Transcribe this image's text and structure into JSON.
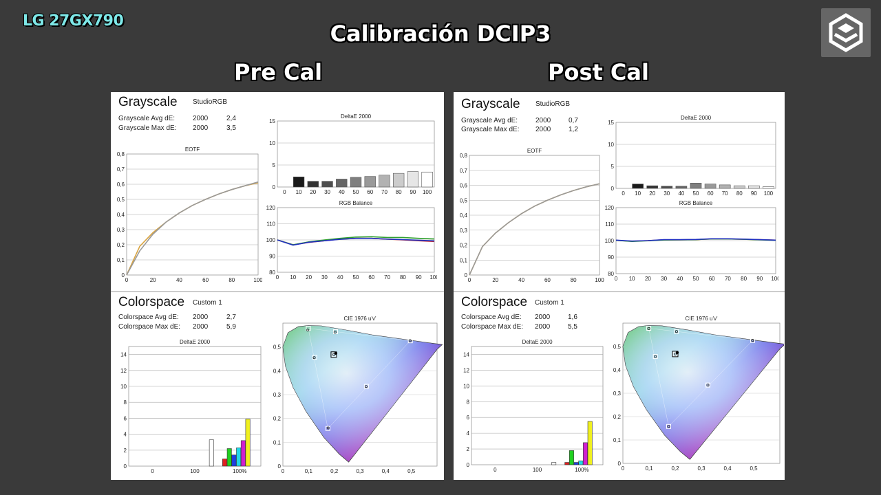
{
  "brand": "LG 27GX790",
  "title": "Calibración DCIP3",
  "panels": [
    {
      "heading": "Pre Cal",
      "grayscale": {
        "title": "Grayscale",
        "profile": "StudioRGB",
        "avg_label": "Grayscale Avg dE:",
        "avg_year": "2000",
        "avg_value": "2,4",
        "max_label": "Grayscale Max dE:",
        "max_year": "2000",
        "max_value": "3,5"
      },
      "colorspace": {
        "title": "Colorspace",
        "profile": "Custom 1",
        "avg_label": "Colorspace Avg dE:",
        "avg_year": "2000",
        "avg_value": "2,7",
        "max_label": "Colorspace Max dE:",
        "max_year": "2000",
        "max_value": "5,9"
      }
    },
    {
      "heading": "Post Cal",
      "grayscale": {
        "title": "Grayscale",
        "profile": "StudioRGB",
        "avg_label": "Grayscale Avg dE:",
        "avg_year": "2000",
        "avg_value": "0,7",
        "max_label": "Grayscale Max dE:",
        "max_year": "2000",
        "max_value": "1,2"
      },
      "colorspace": {
        "title": "Colorspace",
        "profile": "Custom 1",
        "avg_label": "Colorspace Avg dE:",
        "avg_year": "2000",
        "avg_value": "1,6",
        "max_label": "Colorspace Max dE:",
        "max_year": "2000",
        "max_value": "5,5"
      }
    }
  ],
  "chart_data": [
    {
      "id": "pre-eotf",
      "type": "line",
      "title": "EOTF",
      "xlim": [
        0,
        100
      ],
      "ylim": [
        0,
        0.8
      ],
      "xticks": [
        "0",
        "20",
        "40",
        "60",
        "80",
        "100"
      ],
      "yticks": [
        "0",
        "0,1",
        "0,2",
        "0,3",
        "0,4",
        "0,5",
        "0,6",
        "0,7",
        "0,8"
      ],
      "series": [
        {
          "color": "#d9a441",
          "x": [
            0,
            10,
            20,
            30,
            40,
            50,
            60,
            70,
            80,
            90,
            100
          ],
          "y": [
            0,
            0.19,
            0.28,
            0.35,
            0.41,
            0.46,
            0.5,
            0.535,
            0.565,
            0.59,
            0.61
          ]
        },
        {
          "color": "#9a9a9a",
          "x": [
            0,
            10,
            20,
            30,
            40,
            50,
            60,
            70,
            80,
            90,
            100
          ],
          "y": [
            0,
            0.16,
            0.27,
            0.35,
            0.41,
            0.46,
            0.5,
            0.535,
            0.565,
            0.59,
            0.615
          ]
        }
      ]
    },
    {
      "id": "pre-gs-de",
      "type": "bar",
      "title": "DeltaE 2000",
      "ylim": [
        0,
        15
      ],
      "yticks": [
        "0",
        "5",
        "10",
        "15"
      ],
      "categories": [
        "0",
        "10",
        "20",
        "30",
        "40",
        "50",
        "60",
        "70",
        "80",
        "90",
        "100"
      ],
      "values": [
        0,
        2.3,
        1.3,
        1.3,
        1.8,
        2.2,
        2.4,
        2.7,
        3.1,
        3.5,
        3.4
      ],
      "bar_colors": [
        "#000000",
        "#1a1a1a",
        "#333333",
        "#4d4d4d",
        "#666666",
        "#7f7f7f",
        "#999999",
        "#b2b2b2",
        "#cccccc",
        "#e6e6e6",
        "#ffffff"
      ]
    },
    {
      "id": "pre-rgb",
      "type": "line",
      "title": "RGB Balance",
      "xlim": [
        0,
        100
      ],
      "ylim": [
        80,
        120
      ],
      "xticks": [
        "0",
        "10",
        "20",
        "30",
        "40",
        "50",
        "60",
        "70",
        "80",
        "90",
        "100"
      ],
      "yticks": [
        "80",
        "90",
        "100",
        "110",
        "120"
      ],
      "series": [
        {
          "color": "#d03030",
          "x": [
            0,
            10,
            20,
            30,
            40,
            50,
            60,
            70,
            80,
            90,
            100
          ],
          "y": [
            100,
            97,
            98.5,
            99.5,
            100.5,
            101,
            101,
            100.5,
            100,
            99.5,
            99
          ]
        },
        {
          "color": "#30a030",
          "x": [
            0,
            10,
            20,
            30,
            40,
            50,
            60,
            70,
            80,
            90,
            100
          ],
          "y": [
            100,
            97,
            98.8,
            100,
            101,
            101.8,
            102,
            101.5,
            101.5,
            101,
            100.6
          ]
        },
        {
          "color": "#2030c0",
          "x": [
            0,
            10,
            20,
            30,
            40,
            50,
            60,
            70,
            80,
            90,
            100
          ],
          "y": [
            100,
            96.8,
            98.6,
            99.5,
            100.4,
            101,
            101,
            100.5,
            100.2,
            99.8,
            99.4
          ]
        }
      ]
    },
    {
      "id": "pre-cs-de",
      "type": "bar",
      "title": "DeltaE 2000",
      "ylim": [
        0,
        15
      ],
      "yticks": [
        "0",
        "2",
        "4",
        "6",
        "8",
        "10",
        "12",
        "14"
      ],
      "xticks": [
        "0",
        "100",
        "100%"
      ],
      "bars": [
        {
          "label": "white",
          "value": 3.3,
          "color": "#ffffff"
        },
        {
          "label": "red",
          "value": 0.9,
          "color": "#e02020"
        },
        {
          "label": "green",
          "value": 2.2,
          "color": "#20d020"
        },
        {
          "label": "blue",
          "value": 1.4,
          "color": "#2040e0"
        },
        {
          "label": "cyan",
          "value": 2.3,
          "color": "#20d8e8"
        },
        {
          "label": "magenta",
          "value": 3.2,
          "color": "#d020d0"
        },
        {
          "label": "yellow",
          "value": 5.9,
          "color": "#f0f020"
        }
      ]
    },
    {
      "id": "pre-cie",
      "type": "scatter",
      "title": "CIE 1976 u'v'",
      "xlim": [
        0,
        0.6
      ],
      "ylim": [
        0,
        0.6
      ],
      "xticks": [
        "0",
        "0,1",
        "0,2",
        "0,3",
        "0,4",
        "0,5"
      ],
      "yticks": [
        "0",
        "0,1",
        "0,2",
        "0,3",
        "0,4",
        "0,5"
      ],
      "targets": [
        [
          0.496,
          0.526
        ],
        [
          0.099,
          0.578
        ],
        [
          0.175,
          0.158
        ],
        [
          0.325,
          0.335
        ],
        [
          0.124,
          0.457
        ],
        [
          0.2,
          0.467
        ],
        [
          0.205,
          0.564
        ]
      ],
      "measured": [
        [
          0.495,
          0.526
        ],
        [
          0.097,
          0.571
        ],
        [
          0.176,
          0.16
        ],
        [
          0.324,
          0.334
        ],
        [
          0.122,
          0.455
        ],
        [
          0.198,
          0.468
        ],
        [
          0.203,
          0.562
        ]
      ],
      "white_point": [
        0.198,
        0.468
      ]
    },
    {
      "id": "post-eotf",
      "type": "line",
      "title": "EOTF",
      "xlim": [
        0,
        100
      ],
      "ylim": [
        0,
        0.8
      ],
      "xticks": [
        "0",
        "20",
        "40",
        "60",
        "80",
        "100"
      ],
      "yticks": [
        "0",
        "0,1",
        "0,2",
        "0,3",
        "0,4",
        "0,5",
        "0,6",
        "0,7",
        "0,8"
      ],
      "series": [
        {
          "color": "#d9a441",
          "x": [
            0,
            10,
            20,
            30,
            40,
            50,
            60,
            70,
            80,
            90,
            100
          ],
          "y": [
            0,
            0.19,
            0.28,
            0.35,
            0.41,
            0.46,
            0.5,
            0.535,
            0.565,
            0.59,
            0.61
          ]
        },
        {
          "color": "#9a9a9a",
          "x": [
            0,
            10,
            20,
            30,
            40,
            50,
            60,
            70,
            80,
            90,
            100
          ],
          "y": [
            0,
            0.19,
            0.28,
            0.35,
            0.41,
            0.46,
            0.5,
            0.535,
            0.565,
            0.59,
            0.61
          ]
        }
      ]
    },
    {
      "id": "post-gs-de",
      "type": "bar",
      "title": "DeltaE 2000",
      "ylim": [
        0,
        15
      ],
      "yticks": [
        "0",
        "5",
        "10",
        "15"
      ],
      "categories": [
        "0",
        "10",
        "20",
        "30",
        "40",
        "50",
        "60",
        "70",
        "80",
        "90",
        "100"
      ],
      "values": [
        0,
        1.0,
        0.6,
        0.5,
        0.5,
        1.2,
        1.0,
        0.8,
        0.6,
        0.6,
        0.4
      ],
      "bar_colors": [
        "#000000",
        "#1a1a1a",
        "#333333",
        "#4d4d4d",
        "#666666",
        "#7f7f7f",
        "#999999",
        "#b2b2b2",
        "#cccccc",
        "#e6e6e6",
        "#ffffff"
      ]
    },
    {
      "id": "post-rgb",
      "type": "line",
      "title": "RGB Balance",
      "xlim": [
        0,
        100
      ],
      "ylim": [
        80,
        120
      ],
      "xticks": [
        "0",
        "10",
        "20",
        "30",
        "40",
        "50",
        "60",
        "70",
        "80",
        "90",
        "100"
      ],
      "yticks": [
        "80",
        "90",
        "100",
        "110",
        "120"
      ],
      "series": [
        {
          "color": "#d03030",
          "x": [
            0,
            10,
            20,
            30,
            40,
            50,
            60,
            70,
            80,
            90,
            100
          ],
          "y": [
            100.2,
            99.6,
            100,
            100.5,
            100.5,
            100.6,
            101,
            101,
            100.8,
            100.6,
            100.3
          ]
        },
        {
          "color": "#30a030",
          "x": [
            0,
            10,
            20,
            30,
            40,
            50,
            60,
            70,
            80,
            90,
            100
          ],
          "y": [
            100.2,
            99.5,
            99.9,
            100.4,
            100.5,
            100.6,
            101,
            101,
            100.8,
            100.5,
            100.2
          ]
        },
        {
          "color": "#2030c0",
          "x": [
            0,
            10,
            20,
            30,
            40,
            50,
            60,
            70,
            80,
            90,
            100
          ],
          "y": [
            100.3,
            99.7,
            100,
            100.6,
            100.6,
            100.7,
            101.1,
            101.1,
            100.9,
            100.6,
            100.3
          ]
        }
      ]
    },
    {
      "id": "post-cs-de",
      "type": "bar",
      "title": "DeltaE 2000",
      "ylim": [
        0,
        15
      ],
      "yticks": [
        "0",
        "2",
        "4",
        "6",
        "8",
        "10",
        "12",
        "14"
      ],
      "xticks": [
        "0",
        "100",
        "100%"
      ],
      "bars": [
        {
          "label": "white",
          "value": 0.3,
          "color": "#ffffff"
        },
        {
          "label": "red",
          "value": 0.3,
          "color": "#e02020"
        },
        {
          "label": "green",
          "value": 1.8,
          "color": "#20d020"
        },
        {
          "label": "blue",
          "value": 0.3,
          "color": "#2040e0"
        },
        {
          "label": "cyan",
          "value": 0.5,
          "color": "#20d8e8"
        },
        {
          "label": "magenta",
          "value": 2.8,
          "color": "#d020d0"
        },
        {
          "label": "yellow",
          "value": 5.5,
          "color": "#f0f020"
        }
      ]
    },
    {
      "id": "post-cie",
      "type": "scatter",
      "title": "CIE 1976 u'v'",
      "xlim": [
        0,
        0.6
      ],
      "ylim": [
        0,
        0.6
      ],
      "xticks": [
        "0",
        "0,1",
        "0,2",
        "0,3",
        "0,4",
        "0,5"
      ],
      "yticks": [
        "0",
        "0,1",
        "0,2",
        "0,3",
        "0,4",
        "0,5"
      ],
      "targets": [
        [
          0.496,
          0.526
        ],
        [
          0.099,
          0.578
        ],
        [
          0.175,
          0.158
        ],
        [
          0.325,
          0.335
        ],
        [
          0.124,
          0.457
        ],
        [
          0.2,
          0.467
        ],
        [
          0.205,
          0.564
        ]
      ],
      "measured": [
        [
          0.496,
          0.526
        ],
        [
          0.099,
          0.577
        ],
        [
          0.175,
          0.158
        ],
        [
          0.325,
          0.335
        ],
        [
          0.124,
          0.457
        ],
        [
          0.2,
          0.468
        ],
        [
          0.205,
          0.564
        ]
      ],
      "white_point": [
        0.2,
        0.468
      ]
    }
  ]
}
